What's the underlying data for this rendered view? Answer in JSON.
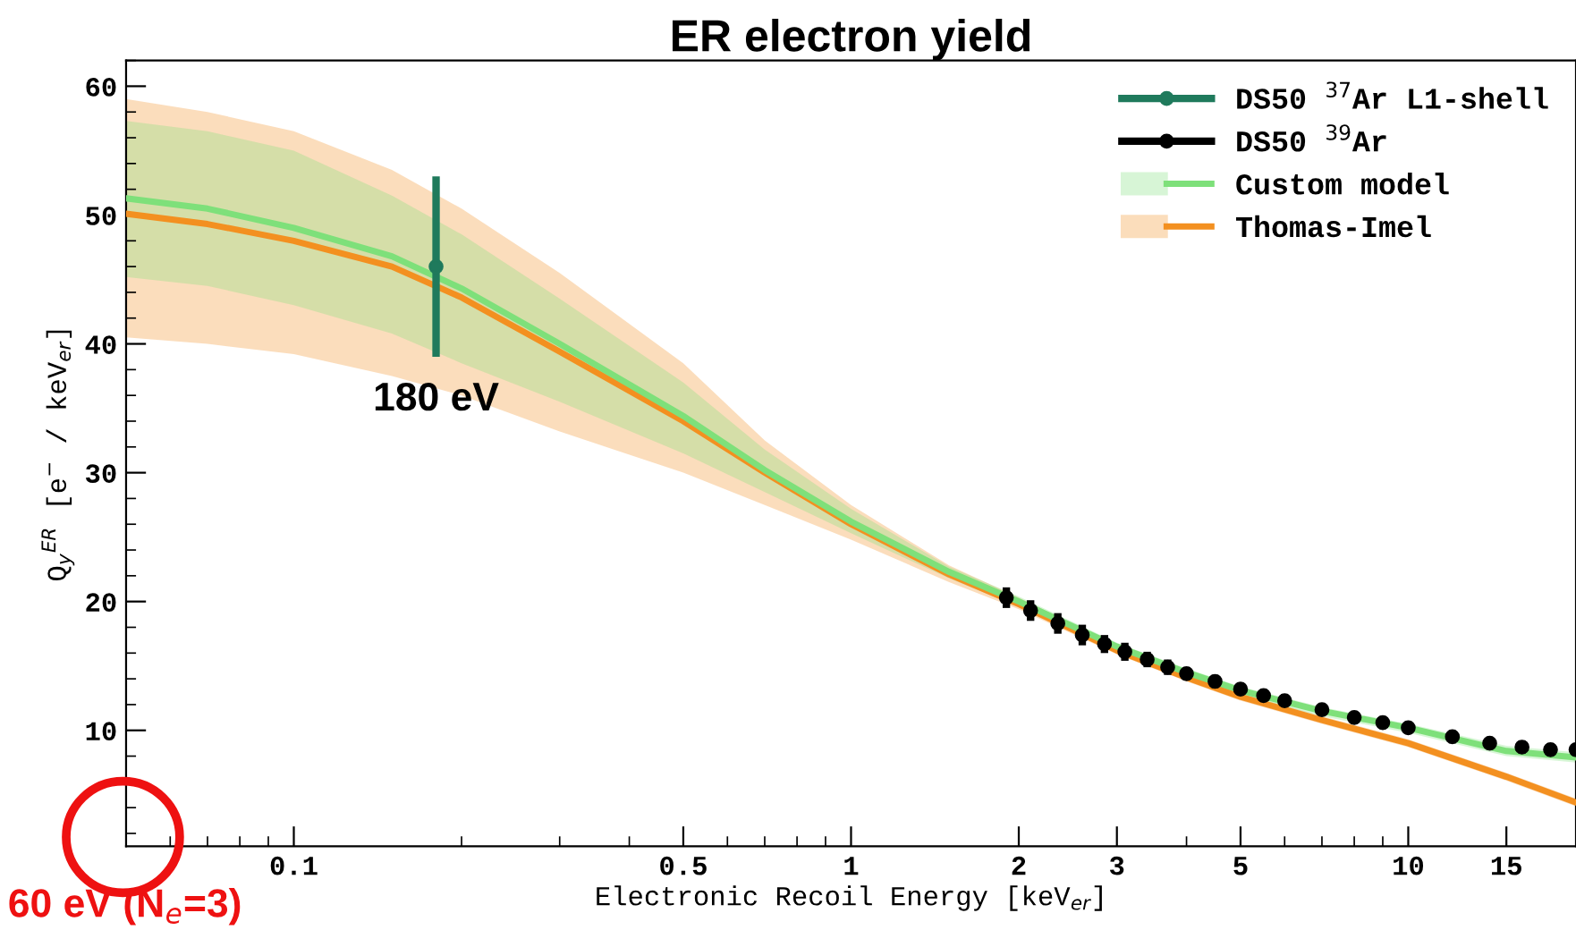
{
  "chart_data": {
    "type": "line",
    "title": "ER electron yield",
    "xlabel": "Electronic Recoil Energy [keV$_{er}$]",
    "ylabel": "Q$_{y}$$^{ER}$ [e$^{−}$ / keV$_{er}$]",
    "log": "x",
    "xlim": [
      0.05,
      20
    ],
    "xticks": [
      0.1,
      0.5,
      1,
      2,
      3,
      5,
      10,
      15
    ],
    "ylim": [
      1,
      62
    ],
    "yticks": [
      10,
      20,
      30,
      40,
      50,
      60
    ],
    "grid": false,
    "legend": "top right",
    "series": [
      {
        "name": "DS50 $^{37}$Ar L1-shell",
        "type": "scatter",
        "color": "#1f7a5c",
        "marker": "circle",
        "x": [
          0.18
        ],
        "values": [
          46
        ],
        "errors": [
          [
            39,
            53
          ]
        ]
      },
      {
        "name": "DS50 $^{39}$Ar",
        "type": "scatter",
        "color": "#000000",
        "marker": "circle",
        "x": [
          1.9,
          2.1,
          2.35,
          2.6,
          2.85,
          3.1,
          3.4,
          3.7,
          4,
          4.5,
          5,
          5.5,
          6,
          7,
          8,
          9,
          10,
          12,
          14,
          16,
          18,
          20
        ],
        "values": [
          20.3,
          19.3,
          18.3,
          17.4,
          16.7,
          16.1,
          15.5,
          14.9,
          14.4,
          13.8,
          13.2,
          12.7,
          12.3,
          11.6,
          11.0,
          10.6,
          10.2,
          9.5,
          9.0,
          8.7,
          8.5,
          8.5
        ],
        "errors": [
          0.8,
          0.8,
          0.8,
          0.8,
          0.7,
          0.7,
          0.6,
          0.6,
          0.5,
          0.5,
          0.5,
          0.5,
          0.5,
          0.5,
          0.5,
          0.5,
          0.5,
          0.5,
          0.5,
          0.5,
          0.5,
          0.5
        ]
      },
      {
        "name": "Custom model",
        "color": "#7ee07a",
        "x": [
          0.05,
          0.07,
          0.1,
          0.15,
          0.2,
          0.3,
          0.5,
          0.7,
          1,
          1.5,
          2,
          3,
          4,
          5,
          7,
          10,
          15,
          20
        ],
        "values": [
          51.3,
          50.5,
          49,
          46.8,
          44.3,
          40,
          34.4,
          30.2,
          26.2,
          22.3,
          20,
          16.5,
          14.5,
          13.1,
          11.5,
          10.2,
          8.4,
          7.9
        ],
        "lower": [
          45.2,
          44.5,
          43,
          40.8,
          38.5,
          35.5,
          31.5,
          28.5,
          25.3,
          21.8,
          19.6,
          16.1,
          14.1,
          12.7,
          11.1,
          9.8,
          8.0,
          7.5
        ],
        "upper": [
          57.3,
          56.5,
          55,
          51.5,
          48.5,
          43.5,
          37,
          31.8,
          27.2,
          22.7,
          20.4,
          16.8,
          14.8,
          13.4,
          11.8,
          10.5,
          8.8,
          8.3
        ]
      },
      {
        "name": "Thomas-Imel",
        "color": "#f39020",
        "x": [
          0.05,
          0.07,
          0.1,
          0.15,
          0.2,
          0.3,
          0.5,
          0.7,
          1,
          1.5,
          2,
          3,
          4,
          5,
          7,
          10,
          15,
          20
        ],
        "values": [
          50.1,
          49.3,
          48,
          46,
          43.6,
          39.4,
          34,
          30,
          26,
          22.1,
          19.8,
          16.2,
          14.1,
          12.6,
          10.8,
          9.0,
          6.4,
          4.4
        ],
        "lower": [
          40.5,
          40,
          39.2,
          37.5,
          36,
          33.2,
          30,
          27.5,
          24.8,
          21.5,
          19.4,
          15.9,
          13.8,
          12.3,
          10.5,
          8.7,
          6.1,
          4.1
        ],
        "upper": [
          59,
          58,
          56.5,
          53.5,
          50.5,
          45.5,
          38.5,
          32.5,
          27.5,
          22.8,
          20.3,
          16.6,
          14.4,
          12.9,
          11.1,
          9.3,
          6.7,
          4.7
        ]
      }
    ],
    "annotations": [
      {
        "text": "180 eV",
        "x": 0.18,
        "y": 39
      },
      "60 eV (N$_{e}$=3)"
    ]
  }
}
